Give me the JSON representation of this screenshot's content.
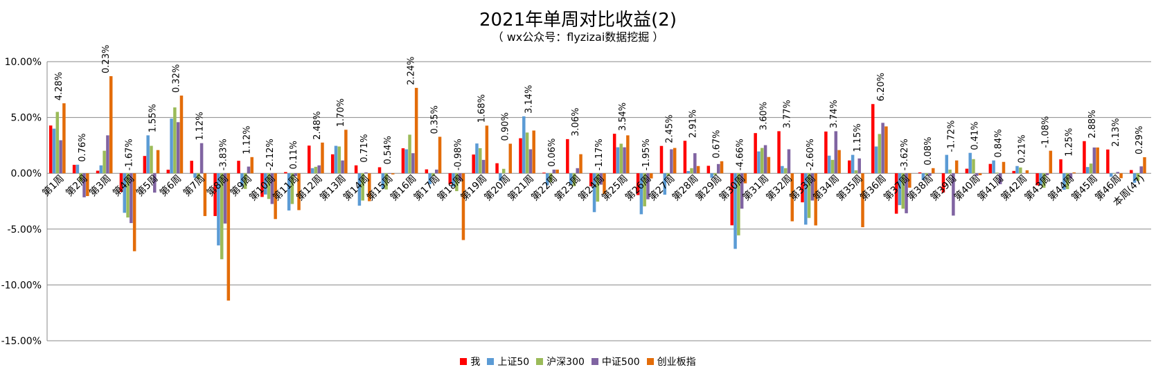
{
  "chart_data": {
    "type": "bar",
    "title": "2021年单周对比收益(2)",
    "subtitle": "（ wx公众号：flyzizai数据挖掘 ）",
    "xlabel": "",
    "ylabel": "",
    "ylim": [
      -15,
      10
    ],
    "yticks": [
      "10.00%",
      "5.00%",
      "0.00%",
      "-5.00%",
      "-10.00%",
      "-15.00%"
    ],
    "ytick_values": [
      10,
      5,
      0,
      -5,
      -10,
      -15
    ],
    "grid": true,
    "legend_position": "bottom",
    "categories": [
      "第1周",
      "第2周",
      "第3周",
      "第4周",
      "第5周",
      "第6周",
      "第7周",
      "第8周",
      "第9周",
      "第10周",
      "第11周",
      "第12周",
      "第13周",
      "第14周",
      "第15周",
      "第16周",
      "第17周",
      "第18周",
      "第19周",
      "第20周",
      "第21周",
      "第22周",
      "第23周",
      "第24周",
      "第25周",
      "第26周",
      "第27周",
      "第28周",
      "第29周",
      "第30周",
      "第31周",
      "第32周",
      "第33周",
      "第34周",
      "第35周",
      "第36周",
      "第37周",
      "第38周",
      "第39周",
      "第40周",
      "第41周",
      "第42周",
      "第43周",
      "第44周",
      "第45周",
      "第46周",
      "本周(47)"
    ],
    "series": [
      {
        "name": "我",
        "color": "#FF0000",
        "labeled": true,
        "values": [
          4.28,
          0.76,
          0.23,
          -1.67,
          1.55,
          0.32,
          1.12,
          -3.83,
          1.12,
          -2.12,
          0.11,
          2.48,
          1.7,
          0.71,
          0.54,
          2.24,
          0.35,
          -0.98,
          1.68,
          0.9,
          3.14,
          0.06,
          3.06,
          -1.17,
          3.54,
          -1.95,
          2.45,
          2.91,
          0.67,
          -4.66,
          3.6,
          3.77,
          -2.6,
          3.74,
          1.15,
          6.2,
          -3.62,
          0.08,
          -1.72,
          0.41,
          0.84,
          0.21,
          -1.08,
          1.25,
          2.88,
          2.13,
          0.29
        ]
      },
      {
        "name": "上证50",
        "color": "#5B9BD5",
        "labeled": false,
        "values": [
          4.0,
          0.77,
          0.71,
          -3.54,
          3.4,
          4.9,
          -0.4,
          -6.46,
          -1.2,
          -1.9,
          -3.33,
          0.46,
          2.46,
          -2.9,
          -1.4,
          2.15,
          -0.98,
          -1.2,
          2.67,
          -0.67,
          5.1,
          -1.08,
          -1.02,
          -3.48,
          2.33,
          -3.67,
          -1.92,
          0.2,
          -0.4,
          -6.77,
          1.96,
          0.65,
          -4.6,
          1.58,
          1.65,
          2.4,
          -2.85,
          -0.6,
          1.65,
          1.83,
          1.15,
          0.65,
          -1.08,
          -1.48,
          0.56,
          -0.31,
          -0.85
        ]
      },
      {
        "name": "沪深300",
        "color": "#9BBB59",
        "labeled": false,
        "values": [
          5.5,
          -0.73,
          2.02,
          -3.96,
          2.46,
          5.9,
          -0.52,
          -7.7,
          -1.4,
          -2.3,
          -2.75,
          0.58,
          2.4,
          -2.44,
          -1.45,
          3.46,
          -0.25,
          -1.6,
          2.25,
          0.4,
          3.65,
          -0.8,
          -1.15,
          -2.54,
          2.65,
          -2.96,
          -0.25,
          0.46,
          -0.15,
          -5.56,
          2.27,
          0.46,
          -4.0,
          1.2,
          0.27,
          3.52,
          -3.17,
          -0.15,
          0.33,
          1.27,
          0.06,
          0.52,
          -1.3,
          -1.42,
          0.87,
          0,
          -0.67
        ]
      },
      {
        "name": "中证500",
        "color": "#8064A2",
        "labeled": false,
        "values": [
          2.96,
          -2.15,
          3.4,
          -4.46,
          -1.73,
          4.58,
          2.7,
          -4.5,
          0.6,
          -2.75,
          -0.25,
          0.71,
          1.15,
          0.08,
          -0.05,
          1.8,
          0.33,
          -0.67,
          1.2,
          0,
          2.15,
          0.33,
          0.46,
          -1.02,
          2.33,
          -2.33,
          2.15,
          1.8,
          0.83,
          -3.17,
          2.52,
          2.15,
          -2.44,
          3.77,
          1.33,
          4.52,
          -3.58,
          -0.23,
          -3.79,
          -0.23,
          -0.98,
          0,
          -0.17,
          -0.48,
          2.31,
          0.12,
          0.62
        ]
      },
      {
        "name": "创业板指",
        "color": "#E36C09",
        "labeled": false,
        "values": [
          6.27,
          -2.04,
          8.7,
          -6.98,
          2.08,
          6.96,
          -3.83,
          -11.4,
          1.45,
          -4.1,
          -3.3,
          2.75,
          3.9,
          -2.5,
          -0.1,
          7.65,
          3.27,
          -5.98,
          4.27,
          2.65,
          3.83,
          0.33,
          1.71,
          -1.85,
          3.4,
          -0.46,
          2.27,
          0.65,
          1.08,
          -0.9,
          1.46,
          -4.3,
          -4.67,
          2.08,
          -4.83,
          4.2,
          -1.29,
          0.46,
          1.15,
          -0.17,
          1.02,
          0.27,
          2.02,
          0.08,
          2.31,
          -0.44,
          1.44
        ]
      }
    ]
  }
}
